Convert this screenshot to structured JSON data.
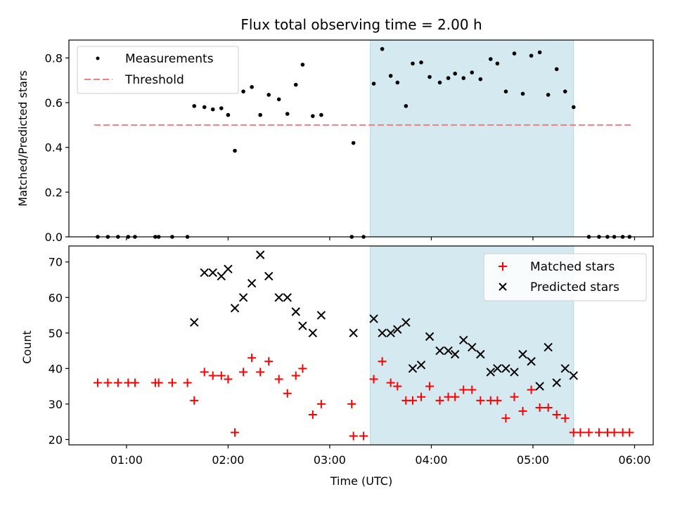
{
  "chart_data": [
    {
      "type": "scatter",
      "title": "Flux total observing time = 2.00 h",
      "ylabel": "Matched/Predicted stars",
      "xlabel": "",
      "ylim": [
        0,
        0.88
      ],
      "yticks": [
        "0.0",
        "0.2",
        "0.4",
        "0.6",
        "0.8"
      ],
      "highlight_window": {
        "start": "03:24",
        "end": "05:24",
        "color": "#d4eaf0"
      },
      "legend": {
        "placement": "upper left",
        "entries": [
          "Measurements",
          "Threshold"
        ]
      },
      "series": [
        {
          "name": "Measurements",
          "color": "#000000",
          "points": [
            [
              "00:43",
              0.0
            ],
            [
              "00:49",
              0.0
            ],
            [
              "00:55",
              0.0
            ],
            [
              "01:01",
              0.0
            ],
            [
              "01:05",
              0.0
            ],
            [
              "01:17",
              0.0
            ],
            [
              "01:19",
              0.0
            ],
            [
              "01:27",
              0.0
            ],
            [
              "01:36",
              0.0
            ],
            [
              "01:40",
              0.585
            ],
            [
              "01:46",
              0.58
            ],
            [
              "01:51",
              0.57
            ],
            [
              "01:56",
              0.575
            ],
            [
              "02:00",
              0.545
            ],
            [
              "02:04",
              0.385
            ],
            [
              "02:09",
              0.65
            ],
            [
              "02:14",
              0.67
            ],
            [
              "02:19",
              0.545
            ],
            [
              "02:24",
              0.635
            ],
            [
              "02:30",
              0.615
            ],
            [
              "02:35",
              0.55
            ],
            [
              "02:40",
              0.68
            ],
            [
              "02:44",
              0.77
            ],
            [
              "02:50",
              0.54
            ],
            [
              "02:55",
              0.545
            ],
            [
              "03:13",
              0.0
            ],
            [
              "03:14",
              0.42
            ],
            [
              "03:20",
              0.0
            ],
            [
              "03:26",
              0.685
            ],
            [
              "03:31",
              0.84
            ],
            [
              "03:36",
              0.72
            ],
            [
              "03:40",
              0.69
            ],
            [
              "03:45",
              0.585
            ],
            [
              "03:49",
              0.775
            ],
            [
              "03:54",
              0.78
            ],
            [
              "03:59",
              0.715
            ],
            [
              "04:05",
              0.69
            ],
            [
              "04:10",
              0.71
            ],
            [
              "04:14",
              0.73
            ],
            [
              "04:19",
              0.71
            ],
            [
              "04:24",
              0.735
            ],
            [
              "04:29",
              0.705
            ],
            [
              "04:35",
              0.795
            ],
            [
              "04:39",
              0.775
            ],
            [
              "04:44",
              0.65
            ],
            [
              "04:49",
              0.82
            ],
            [
              "04:54",
              0.64
            ],
            [
              "04:59",
              0.81
            ],
            [
              "05:04",
              0.825
            ],
            [
              "05:09",
              0.635
            ],
            [
              "05:14",
              0.75
            ],
            [
              "05:19",
              0.65
            ],
            [
              "05:24",
              0.58
            ],
            [
              "05:33",
              0.0
            ],
            [
              "05:39",
              0.0
            ],
            [
              "05:44",
              0.0
            ],
            [
              "05:48",
              0.0
            ],
            [
              "05:53",
              0.0
            ],
            [
              "05:57",
              0.0
            ]
          ]
        },
        {
          "name": "Threshold",
          "style": "dashed",
          "color": "#f08080",
          "points": [
            [
              "00:41",
              0.5
            ],
            [
              "05:59",
              0.5
            ]
          ]
        }
      ]
    },
    {
      "type": "scatter",
      "title": "",
      "ylabel": "Count",
      "xlabel": "Time (UTC)",
      "ylim": [
        18.5,
        74.5
      ],
      "yticks": [
        "20",
        "30",
        "40",
        "50",
        "60",
        "70"
      ],
      "xticks": [
        "01:00",
        "02:00",
        "03:00",
        "04:00",
        "05:00",
        "06:00"
      ],
      "xlim": [
        "00:26",
        "06:11"
      ],
      "highlight_window": {
        "start": "03:24",
        "end": "05:24",
        "color": "#d4eaf0"
      },
      "legend": {
        "placement": "upper right",
        "entries": [
          "Matched stars",
          "Predicted stars"
        ]
      },
      "series": [
        {
          "name": "Matched stars",
          "marker": "plus",
          "color": "#ff0000",
          "points": [
            [
              "00:43",
              36
            ],
            [
              "00:49",
              36
            ],
            [
              "00:55",
              36
            ],
            [
              "01:01",
              36
            ],
            [
              "01:05",
              36
            ],
            [
              "01:17",
              36
            ],
            [
              "01:19",
              36
            ],
            [
              "01:27",
              36
            ],
            [
              "01:36",
              36
            ],
            [
              "01:40",
              31
            ],
            [
              "01:46",
              39
            ],
            [
              "01:51",
              38
            ],
            [
              "01:56",
              38
            ],
            [
              "02:00",
              37
            ],
            [
              "02:04",
              22
            ],
            [
              "02:09",
              39
            ],
            [
              "02:14",
              43
            ],
            [
              "02:19",
              39
            ],
            [
              "02:24",
              42
            ],
            [
              "02:30",
              37
            ],
            [
              "02:35",
              33
            ],
            [
              "02:40",
              38
            ],
            [
              "02:44",
              40
            ],
            [
              "02:50",
              27
            ],
            [
              "02:55",
              30
            ],
            [
              "03:13",
              30
            ],
            [
              "03:14",
              21
            ],
            [
              "03:20",
              21
            ],
            [
              "03:26",
              37
            ],
            [
              "03:31",
              42
            ],
            [
              "03:36",
              36
            ],
            [
              "03:40",
              35
            ],
            [
              "03:45",
              31
            ],
            [
              "03:49",
              31
            ],
            [
              "03:54",
              32
            ],
            [
              "03:59",
              35
            ],
            [
              "04:05",
              31
            ],
            [
              "04:10",
              32
            ],
            [
              "04:14",
              32
            ],
            [
              "04:19",
              34
            ],
            [
              "04:24",
              34
            ],
            [
              "04:29",
              31
            ],
            [
              "04:35",
              31
            ],
            [
              "04:39",
              31
            ],
            [
              "04:44",
              26
            ],
            [
              "04:49",
              32
            ],
            [
              "04:54",
              28
            ],
            [
              "04:59",
              34
            ],
            [
              "05:04",
              29
            ],
            [
              "05:09",
              29
            ],
            [
              "05:14",
              27
            ],
            [
              "05:19",
              26
            ],
            [
              "05:24",
              22
            ],
            [
              "05:28",
              22
            ],
            [
              "05:33",
              22
            ],
            [
              "05:39",
              22
            ],
            [
              "05:44",
              22
            ],
            [
              "05:48",
              22
            ],
            [
              "05:53",
              22
            ],
            [
              "05:57",
              22
            ]
          ]
        },
        {
          "name": "Predicted stars",
          "marker": "x",
          "color": "#000000",
          "points": [
            [
              "01:40",
              53
            ],
            [
              "01:46",
              67
            ],
            [
              "01:51",
              67
            ],
            [
              "01:56",
              66
            ],
            [
              "02:00",
              68
            ],
            [
              "02:04",
              57
            ],
            [
              "02:09",
              60
            ],
            [
              "02:14",
              64
            ],
            [
              "02:19",
              72
            ],
            [
              "02:24",
              66
            ],
            [
              "02:30",
              60
            ],
            [
              "02:35",
              60
            ],
            [
              "02:40",
              56
            ],
            [
              "02:44",
              52
            ],
            [
              "02:50",
              50
            ],
            [
              "02:55",
              55
            ],
            [
              "03:14",
              50
            ],
            [
              "03:26",
              54
            ],
            [
              "03:31",
              50
            ],
            [
              "03:36",
              50
            ],
            [
              "03:40",
              51
            ],
            [
              "03:45",
              53
            ],
            [
              "03:49",
              40
            ],
            [
              "03:54",
              41
            ],
            [
              "03:59",
              49
            ],
            [
              "04:05",
              45
            ],
            [
              "04:10",
              45
            ],
            [
              "04:14",
              44
            ],
            [
              "04:19",
              48
            ],
            [
              "04:24",
              46
            ],
            [
              "04:29",
              44
            ],
            [
              "04:35",
              39
            ],
            [
              "04:39",
              40
            ],
            [
              "04:44",
              40
            ],
            [
              "04:49",
              39
            ],
            [
              "04:54",
              44
            ],
            [
              "04:59",
              42
            ],
            [
              "05:04",
              35
            ],
            [
              "05:09",
              46
            ],
            [
              "05:14",
              36
            ],
            [
              "05:19",
              40
            ],
            [
              "05:24",
              38
            ]
          ]
        }
      ]
    }
  ]
}
